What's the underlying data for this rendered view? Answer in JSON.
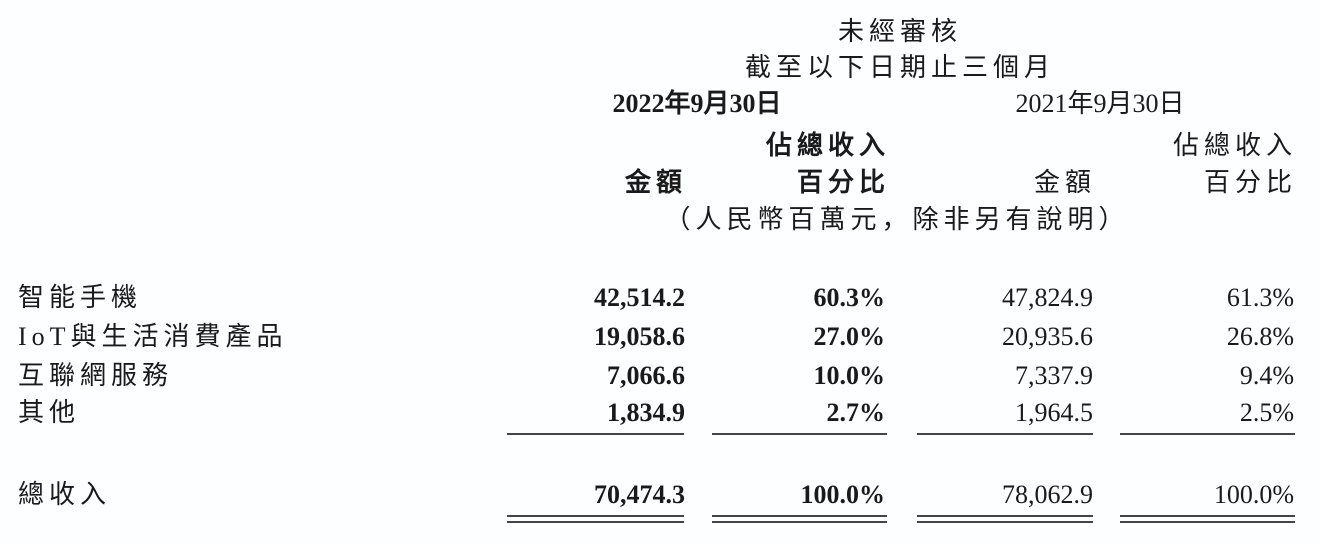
{
  "header": {
    "audit": "未經審核",
    "period": "截至以下日期止三個月",
    "date_2022": "2022年9月30日",
    "date_2021": "2021年9月30日",
    "pct_top": "佔總收入",
    "amount": "金額",
    "pct_bottom": "百分比",
    "unit_note": "（人民幣百萬元，除非另有說明）"
  },
  "rows": [
    {
      "label": "智能手機",
      "amt_2022": "42,514.2",
      "pct_2022": "60.3%",
      "amt_2021": "47,824.9",
      "pct_2021": "61.3%"
    },
    {
      "label": "IoT與生活消費產品",
      "amt_2022": "19,058.6",
      "pct_2022": "27.0%",
      "amt_2021": "20,935.6",
      "pct_2021": "26.8%"
    },
    {
      "label": "互聯網服務",
      "amt_2022": "7,066.6",
      "pct_2022": "10.0%",
      "amt_2021": "7,337.9",
      "pct_2021": "9.4%"
    },
    {
      "label": "其他",
      "amt_2022": "1,834.9",
      "pct_2022": "2.7%",
      "amt_2021": "1,964.5",
      "pct_2021": "2.5%"
    }
  ],
  "total": {
    "label": "總收入",
    "amt_2022": "70,474.3",
    "pct_2022": "100.0%",
    "amt_2021": "78,062.9",
    "pct_2021": "100.0%"
  }
}
